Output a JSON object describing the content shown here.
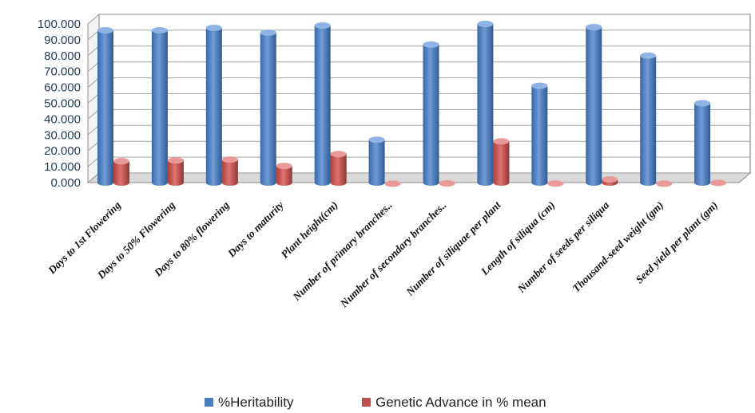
{
  "chart_data": {
    "type": "bar",
    "title": "",
    "xlabel": "",
    "ylabel": "",
    "ylim": [
      0,
      100
    ],
    "yticks": [
      "0.000",
      "10.000",
      "20.000",
      "30.000",
      "40.000",
      "50.000",
      "60.000",
      "70.000",
      "80.000",
      "90.000",
      "100.000"
    ],
    "categories": [
      "Days to 1st Flowering",
      "Days to 50% Flowering",
      "Days to 80% flowering",
      "Days to maturity",
      "Plant height(cm)",
      "Number of primary branches..",
      "Number of secondary branches..",
      "Number of siliquae per plant",
      "Length of siliqua (cm)",
      "Number of seeds per siliqua",
      "Thousand-seed weight (gm)",
      "Seed yield per plant  (gm)"
    ],
    "series": [
      {
        "name": "%Heritability",
        "color": "#4a7ebb",
        "values": [
          97,
          97,
          98.5,
          95.5,
          100,
          28,
          88,
          101,
          62,
          99,
          81,
          51
        ]
      },
      {
        "name": "Genetic Advance  in % mean",
        "color": "#c0504d",
        "values": [
          14.5,
          15,
          15.5,
          11.5,
          19,
          0.3,
          0.5,
          27,
          0.4,
          3,
          0.3,
          0.8
        ]
      }
    ],
    "grid": true,
    "legend_position": "bottom"
  }
}
